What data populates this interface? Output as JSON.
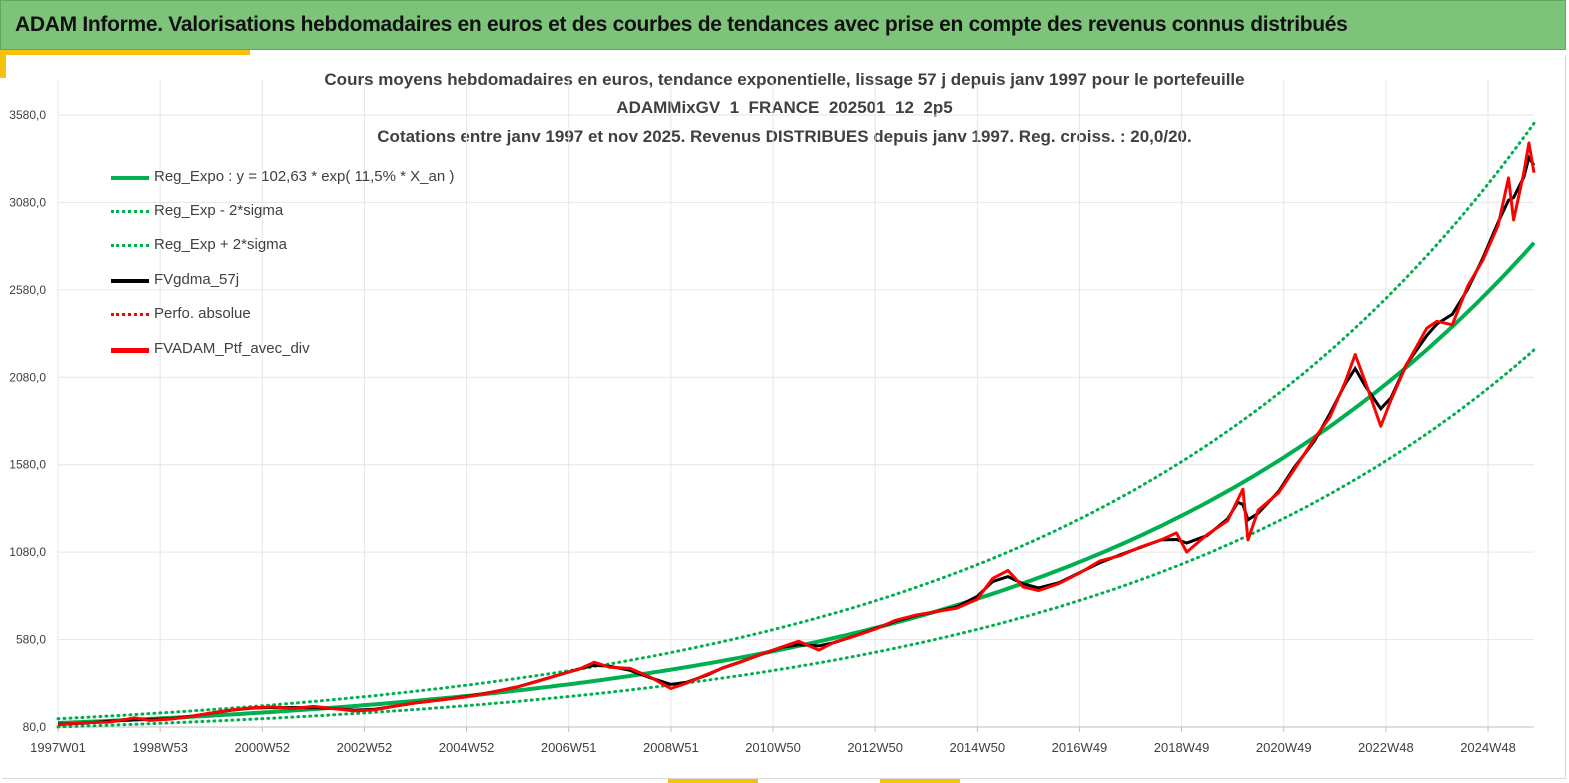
{
  "header": {
    "title": "ADAM Informe. Valorisations hebdomadaires en euros et des courbes de tendances avec prise en compte des revenus connus distribués"
  },
  "colors": {
    "banner": "#7dc47a",
    "accent": "#f4c20d",
    "green": "#00b050",
    "black": "#000000",
    "red": "#ff0000",
    "grid": "#e6e6e6"
  },
  "chart_data": {
    "type": "line",
    "title_lines": [
      "Cours moyens hebdomadaires  en euros, tendance exponentielle, lissage 57 j depuis janv 1997 pour le portefeuille",
      "ADAMMixGV_1_FRANCE_202501_12_2p5",
      "Cotations  entre janv 1997 et nov 2025. Revenus DISTRIBUES depuis janv 1997. Reg. croiss. : 20,0/20."
    ],
    "x_tick_labels": [
      "1997W01",
      "1998W53",
      "2000W52",
      "2002W52",
      "2004W52",
      "2006W51",
      "2008W51",
      "2010W50",
      "2012W50",
      "2014W50",
      "2016W49",
      "2018W49",
      "2020W49",
      "2022W48",
      "2024W48"
    ],
    "x_tick_years": [
      1997.0,
      1999.0,
      2001.0,
      2003.0,
      2005.0,
      2007.0,
      2009.0,
      2011.0,
      2013.0,
      2015.0,
      2017.0,
      2019.0,
      2021.0,
      2023.0,
      2025.0
    ],
    "x_range": [
      1997.0,
      2025.9
    ],
    "y_tick_labels": [
      "80,0",
      "580,0",
      "1080,0",
      "1580,0",
      "2080,0",
      "2580,0",
      "3080,0",
      "3580,0"
    ],
    "y_ticks": [
      80,
      580,
      1080,
      1580,
      2080,
      2580,
      3080,
      3580
    ],
    "ylim": [
      80,
      3780
    ],
    "legend": [
      {
        "label": "Reg_Expo : y = 102,63 * exp( 11,5% *  X_an )",
        "style": "solid-green"
      },
      {
        "label": "Reg_Exp - 2*sigma",
        "style": "dotted-green"
      },
      {
        "label": "Reg_Exp + 2*sigma",
        "style": "dotted-green"
      },
      {
        "label": "FVgdma_57j",
        "style": "solid-black"
      },
      {
        "label": "Perfo. absolue",
        "style": "dotted-red"
      },
      {
        "label": "FVADAM_Ptf_avec_div",
        "style": "solid-red"
      }
    ],
    "regression": {
      "a": 102.63,
      "growth": 0.115,
      "lower_factor": 0.785,
      "upper_factor": 1.24
    },
    "series": [
      {
        "name": "FVADAM_Ptf_avec_div",
        "points": [
          [
            1997.0,
            92
          ],
          [
            1997.5,
            105
          ],
          [
            1998.0,
            108
          ],
          [
            1998.5,
            132
          ],
          [
            1998.8,
            118
          ],
          [
            1999.2,
            125
          ],
          [
            1999.6,
            140
          ],
          [
            2000.0,
            160
          ],
          [
            2000.4,
            178
          ],
          [
            2000.8,
            190
          ],
          [
            2001.2,
            195
          ],
          [
            2001.6,
            185
          ],
          [
            2002.0,
            198
          ],
          [
            2002.4,
            185
          ],
          [
            2002.8,
            172
          ],
          [
            2003.2,
            178
          ],
          [
            2003.6,
            200
          ],
          [
            2004.0,
            218
          ],
          [
            2004.5,
            235
          ],
          [
            2005.0,
            252
          ],
          [
            2005.5,
            278
          ],
          [
            2006.0,
            310
          ],
          [
            2006.4,
            342
          ],
          [
            2006.8,
            378
          ],
          [
            2007.2,
            410
          ],
          [
            2007.5,
            450
          ],
          [
            2007.8,
            422
          ],
          [
            2008.2,
            415
          ],
          [
            2008.6,
            365
          ],
          [
            2009.0,
            300
          ],
          [
            2009.3,
            330
          ],
          [
            2009.7,
            380
          ],
          [
            2010.0,
            415
          ],
          [
            2010.4,
            455
          ],
          [
            2010.8,
            500
          ],
          [
            2011.2,
            540
          ],
          [
            2011.5,
            570
          ],
          [
            2011.9,
            520
          ],
          [
            2012.2,
            565
          ],
          [
            2012.6,
            600
          ],
          [
            2013.0,
            640
          ],
          [
            2013.4,
            690
          ],
          [
            2013.8,
            720
          ],
          [
            2014.2,
            740
          ],
          [
            2014.6,
            760
          ],
          [
            2015.0,
            810
          ],
          [
            2015.3,
            930
          ],
          [
            2015.6,
            975
          ],
          [
            2015.9,
            880
          ],
          [
            2016.2,
            860
          ],
          [
            2016.6,
            900
          ],
          [
            2017.0,
            960
          ],
          [
            2017.4,
            1030
          ],
          [
            2017.8,
            1060
          ],
          [
            2018.2,
            1110
          ],
          [
            2018.6,
            1150
          ],
          [
            2018.9,
            1190
          ],
          [
            2019.1,
            1080
          ],
          [
            2019.5,
            1180
          ],
          [
            2019.9,
            1260
          ],
          [
            2020.1,
            1380
          ],
          [
            2020.2,
            1440
          ],
          [
            2020.3,
            1150
          ],
          [
            2020.5,
            1320
          ],
          [
            2020.9,
            1420
          ],
          [
            2021.2,
            1550
          ],
          [
            2021.6,
            1730
          ],
          [
            2021.9,
            1850
          ],
          [
            2022.2,
            2050
          ],
          [
            2022.4,
            2210
          ],
          [
            2022.6,
            2050
          ],
          [
            2022.9,
            1800
          ],
          [
            2023.1,
            1950
          ],
          [
            2023.4,
            2150
          ],
          [
            2023.8,
            2360
          ],
          [
            2024.0,
            2400
          ],
          [
            2024.3,
            2380
          ],
          [
            2024.6,
            2600
          ],
          [
            2024.9,
            2750
          ],
          [
            2025.2,
            2950
          ],
          [
            2025.4,
            3220
          ],
          [
            2025.5,
            2980
          ],
          [
            2025.7,
            3250
          ],
          [
            2025.8,
            3420
          ],
          [
            2025.9,
            3250
          ]
        ]
      }
    ]
  }
}
